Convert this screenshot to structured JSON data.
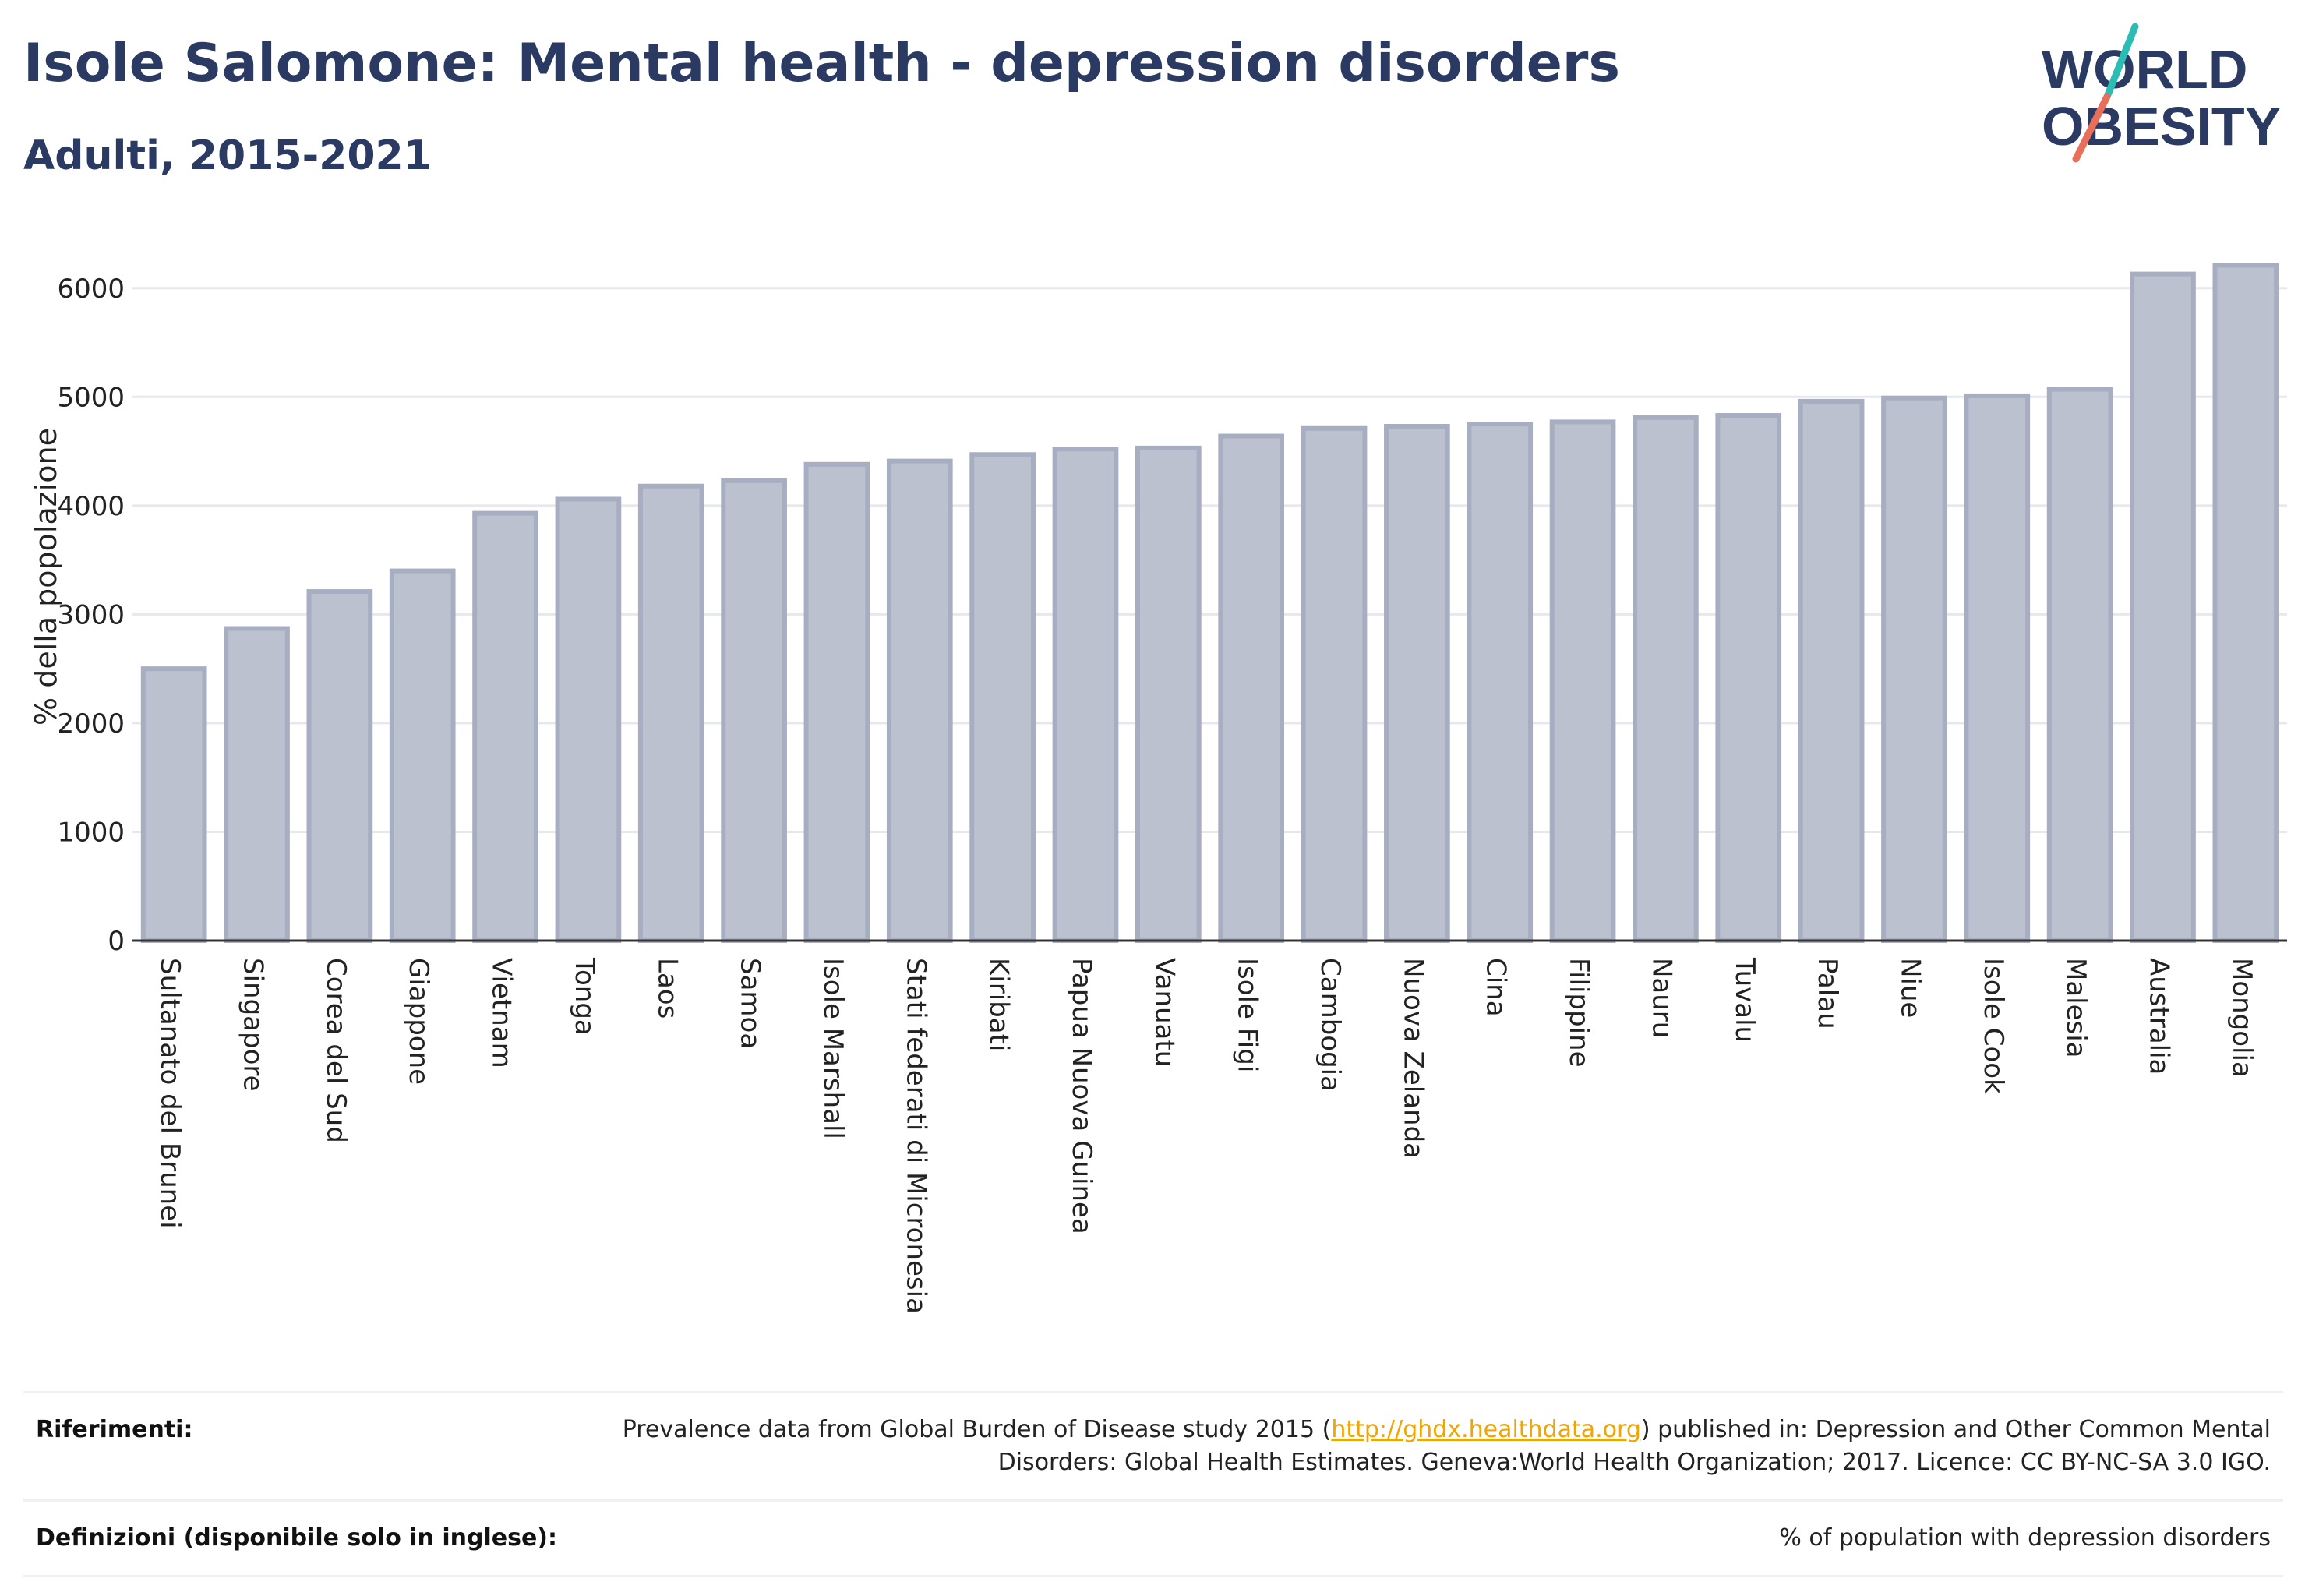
{
  "header": {
    "title": "Isole Salomone: Mental health - depression disorders",
    "subtitle": "Adulti, 2015-2021"
  },
  "logo": {
    "line1": "WORLD",
    "line2": "OBESITY"
  },
  "chart_data": {
    "type": "bar",
    "ylabel": "% della popolazione",
    "xlabel": "",
    "ylim": [
      0,
      6500
    ],
    "yticks": [
      0,
      1000,
      2000,
      3000,
      4000,
      5000,
      6000
    ],
    "grid": true,
    "bar_color": "#bcc1cf",
    "bar_edge_color": "#a8aec2",
    "categories": [
      "Sultanato del Brunei",
      "Singapore",
      "Corea del Sud",
      "Giappone",
      "Vietnam",
      "Tonga",
      "Laos",
      "Samoa",
      "Isole Marshall",
      "Stati federati di Micronesia",
      "Kiribati",
      "Papua Nuova Guinea",
      "Vanuatu",
      "Isole Figi",
      "Cambogia",
      "Nuova Zelanda",
      "Cina",
      "Filippine",
      "Nauru",
      "Tuvalu",
      "Palau",
      "Niue",
      "Isole Cook",
      "Malesia",
      "Australia",
      "Mongolia"
    ],
    "values": [
      2500,
      2870,
      3210,
      3400,
      3930,
      4060,
      4180,
      4230,
      4380,
      4410,
      4470,
      4520,
      4530,
      4640,
      4710,
      4730,
      4750,
      4770,
      4810,
      4830,
      4960,
      4990,
      5010,
      5070,
      6130,
      6210
    ]
  },
  "footer": {
    "references_label": "Riferimenti:",
    "references_text_before": "Prevalence data from Global Burden of Disease study 2015 (",
    "references_link": "http://ghdx.healthdata.org",
    "references_text_after": ") published in: Depression and Other Common Mental Disorders: Global Health Estimates. Geneva:World Health Organization; 2017. Licence: CC BY-NC-SA 3.0 IGO.",
    "definitions_label": "Definizioni (disponibile solo in inglese):",
    "definitions_text": "% of population with depression disorders"
  },
  "colors": {
    "title": "#2a3a63",
    "logo_slash_top": "#2bbcb3",
    "logo_slash_bottom": "#e8705a",
    "link": "#f0a500"
  }
}
